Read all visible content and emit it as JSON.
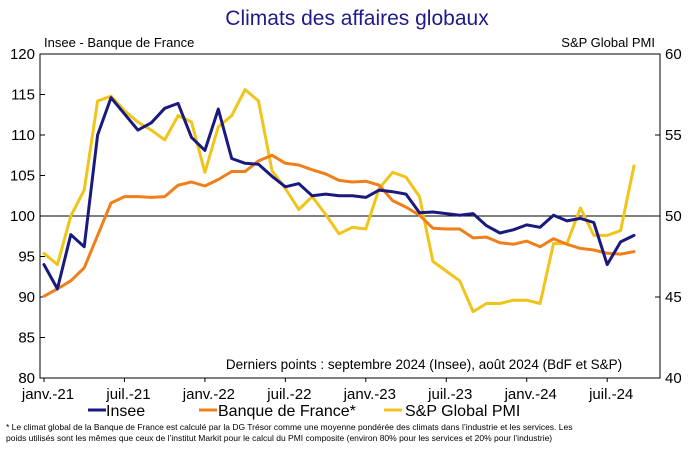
{
  "chart_data": {
    "type": "line",
    "title": "Climats des affaires globaux",
    "left_axis_label": "Insee - Banque de France",
    "right_axis_label": "S&P Global PMI",
    "left_ylim": [
      80,
      120
    ],
    "left_yticks": [
      "80",
      "85",
      "90",
      "95",
      "100",
      "105",
      "110",
      "115",
      "120"
    ],
    "right_ylim": [
      40,
      60
    ],
    "right_yticks": [
      "40",
      "45",
      "50",
      "55",
      "60"
    ],
    "x_tick_labels": [
      "janv.-21",
      "juil.-21",
      "janv.-22",
      "juil.-22",
      "janv.-23",
      "juil.-23",
      "janv.-24",
      "juil.-24"
    ],
    "reference_line": 100,
    "annotation": "Derniers points : septembre 2024 (Insee), août 2024 (BdF et S&P)",
    "footnote": "* Le climat global de la Banque de France est calculé par la DG Trésor comme une moyenne pondérée des climats dans l’industrie et les services. Les poids utilisés sont les mêmes que ceux de l’institut Markit pour le calcul du PMI composite (environ 80% pour les services et 20% pour l’industrie)",
    "x": [
      "2021-01",
      "2021-02",
      "2021-03",
      "2021-04",
      "2021-05",
      "2021-06",
      "2021-07",
      "2021-08",
      "2021-09",
      "2021-10",
      "2021-11",
      "2021-12",
      "2022-01",
      "2022-02",
      "2022-03",
      "2022-04",
      "2022-05",
      "2022-06",
      "2022-07",
      "2022-08",
      "2022-09",
      "2022-10",
      "2022-11",
      "2022-12",
      "2023-01",
      "2023-02",
      "2023-03",
      "2023-04",
      "2023-05",
      "2023-06",
      "2023-07",
      "2023-08",
      "2023-09",
      "2023-10",
      "2023-11",
      "2023-12",
      "2024-01",
      "2024-02",
      "2024-03",
      "2024-04",
      "2024-05",
      "2024-06",
      "2024-07",
      "2024-08",
      "2024-09"
    ],
    "series": [
      {
        "name": "Insee",
        "axis": "left",
        "color": "#1a1a7e",
        "values": [
          94,
          91,
          97.7,
          96.2,
          110,
          114.6,
          112.6,
          110.6,
          111.5,
          113.3,
          113.9,
          109.7,
          108.1,
          113.2,
          107.1,
          106.5,
          106.4,
          104.9,
          103.6,
          104.0,
          102.5,
          102.7,
          102.5,
          102.5,
          102.3,
          103.2,
          103.0,
          102.7,
          100.4,
          100.5,
          100.3,
          100.1,
          100.3,
          98.8,
          97.9,
          98.3,
          98.9,
          98.6,
          100.1,
          99.4,
          99.7,
          99.2,
          94.0,
          96.8,
          97.6
        ]
      },
      {
        "name": "Banque de France*",
        "axis": "left",
        "color": "#f07f1a",
        "values": [
          90.1,
          91,
          92,
          93.6,
          97.6,
          101.6,
          102.4,
          102.4,
          102.3,
          102.4,
          103.8,
          104.2,
          103.7,
          104.5,
          105.5,
          105.5,
          106.8,
          107.5,
          106.5,
          106.3,
          105.7,
          105.2,
          104.4,
          104.2,
          104.3,
          103.8,
          101.9,
          101.1,
          100.1,
          98.5,
          98.4,
          98.4,
          97.3,
          97.4,
          96.7,
          96.5,
          96.9,
          96.2,
          97.2,
          96.5,
          96.0,
          95.8,
          95.4,
          95.3,
          95.6
        ]
      },
      {
        "name": "S&P Global PMI",
        "axis": "right",
        "color": "#f0c419",
        "values": [
          47.7,
          47.0,
          50.0,
          51.6,
          57.1,
          57.4,
          56.5,
          55.8,
          55.3,
          54.7,
          56.2,
          55.8,
          52.7,
          55.5,
          56.2,
          57.8,
          57.1,
          52.8,
          51.7,
          50.4,
          51.2,
          50.1,
          48.9,
          49.3,
          49.2,
          51.7,
          52.7,
          52.4,
          51.2,
          47.2,
          46.6,
          46.0,
          44.1,
          44.6,
          44.6,
          44.8,
          44.8,
          44.6,
          48.3,
          48.3,
          50.5,
          48.8,
          48.8,
          49.1,
          53.1
        ]
      }
    ]
  }
}
